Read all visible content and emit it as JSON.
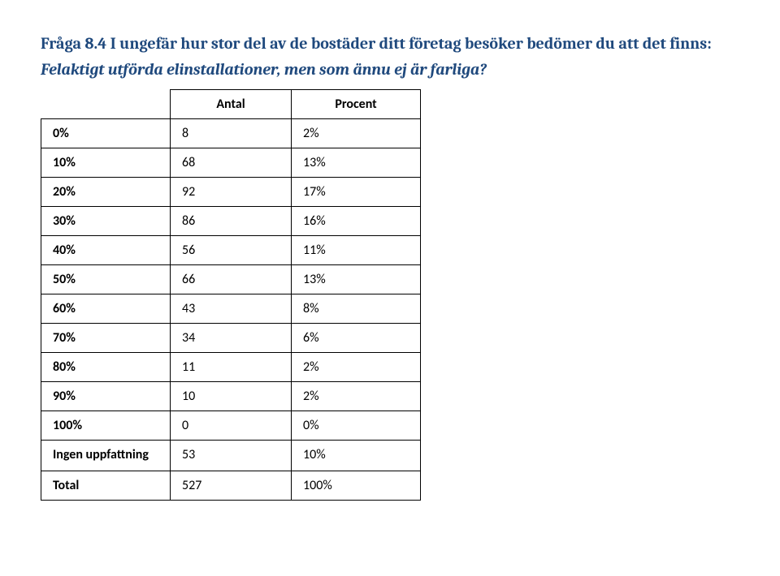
{
  "heading_line1": "Fråga 8.4 I ungefär hur stor del av de bostäder ditt företag besöker bedömer du att det finns:",
  "sub_heading": "Felaktigt utförda elinstallationer, men som ännu ej är farliga?",
  "columns": {
    "label": "",
    "antal": "Antal",
    "procent": "Procent"
  },
  "rows": [
    {
      "label": "0%",
      "antal": "8",
      "procent": "2%"
    },
    {
      "label": "10%",
      "antal": "68",
      "procent": "13%"
    },
    {
      "label": "20%",
      "antal": "92",
      "procent": "17%"
    },
    {
      "label": "30%",
      "antal": "86",
      "procent": "16%"
    },
    {
      "label": "40%",
      "antal": "56",
      "procent": "11%"
    },
    {
      "label": "50%",
      "antal": "66",
      "procent": "13%"
    },
    {
      "label": "60%",
      "antal": "43",
      "procent": "8%"
    },
    {
      "label": "70%",
      "antal": "34",
      "procent": "6%"
    },
    {
      "label": "80%",
      "antal": "11",
      "procent": "2%"
    },
    {
      "label": "90%",
      "antal": "10",
      "procent": "2%"
    },
    {
      "label": "100%",
      "antal": "0",
      "procent": "0%"
    },
    {
      "label": "Ingen uppfattning",
      "antal": "53",
      "procent": "10%"
    },
    {
      "label": "Total",
      "antal": "527",
      "procent": "100%"
    }
  ]
}
